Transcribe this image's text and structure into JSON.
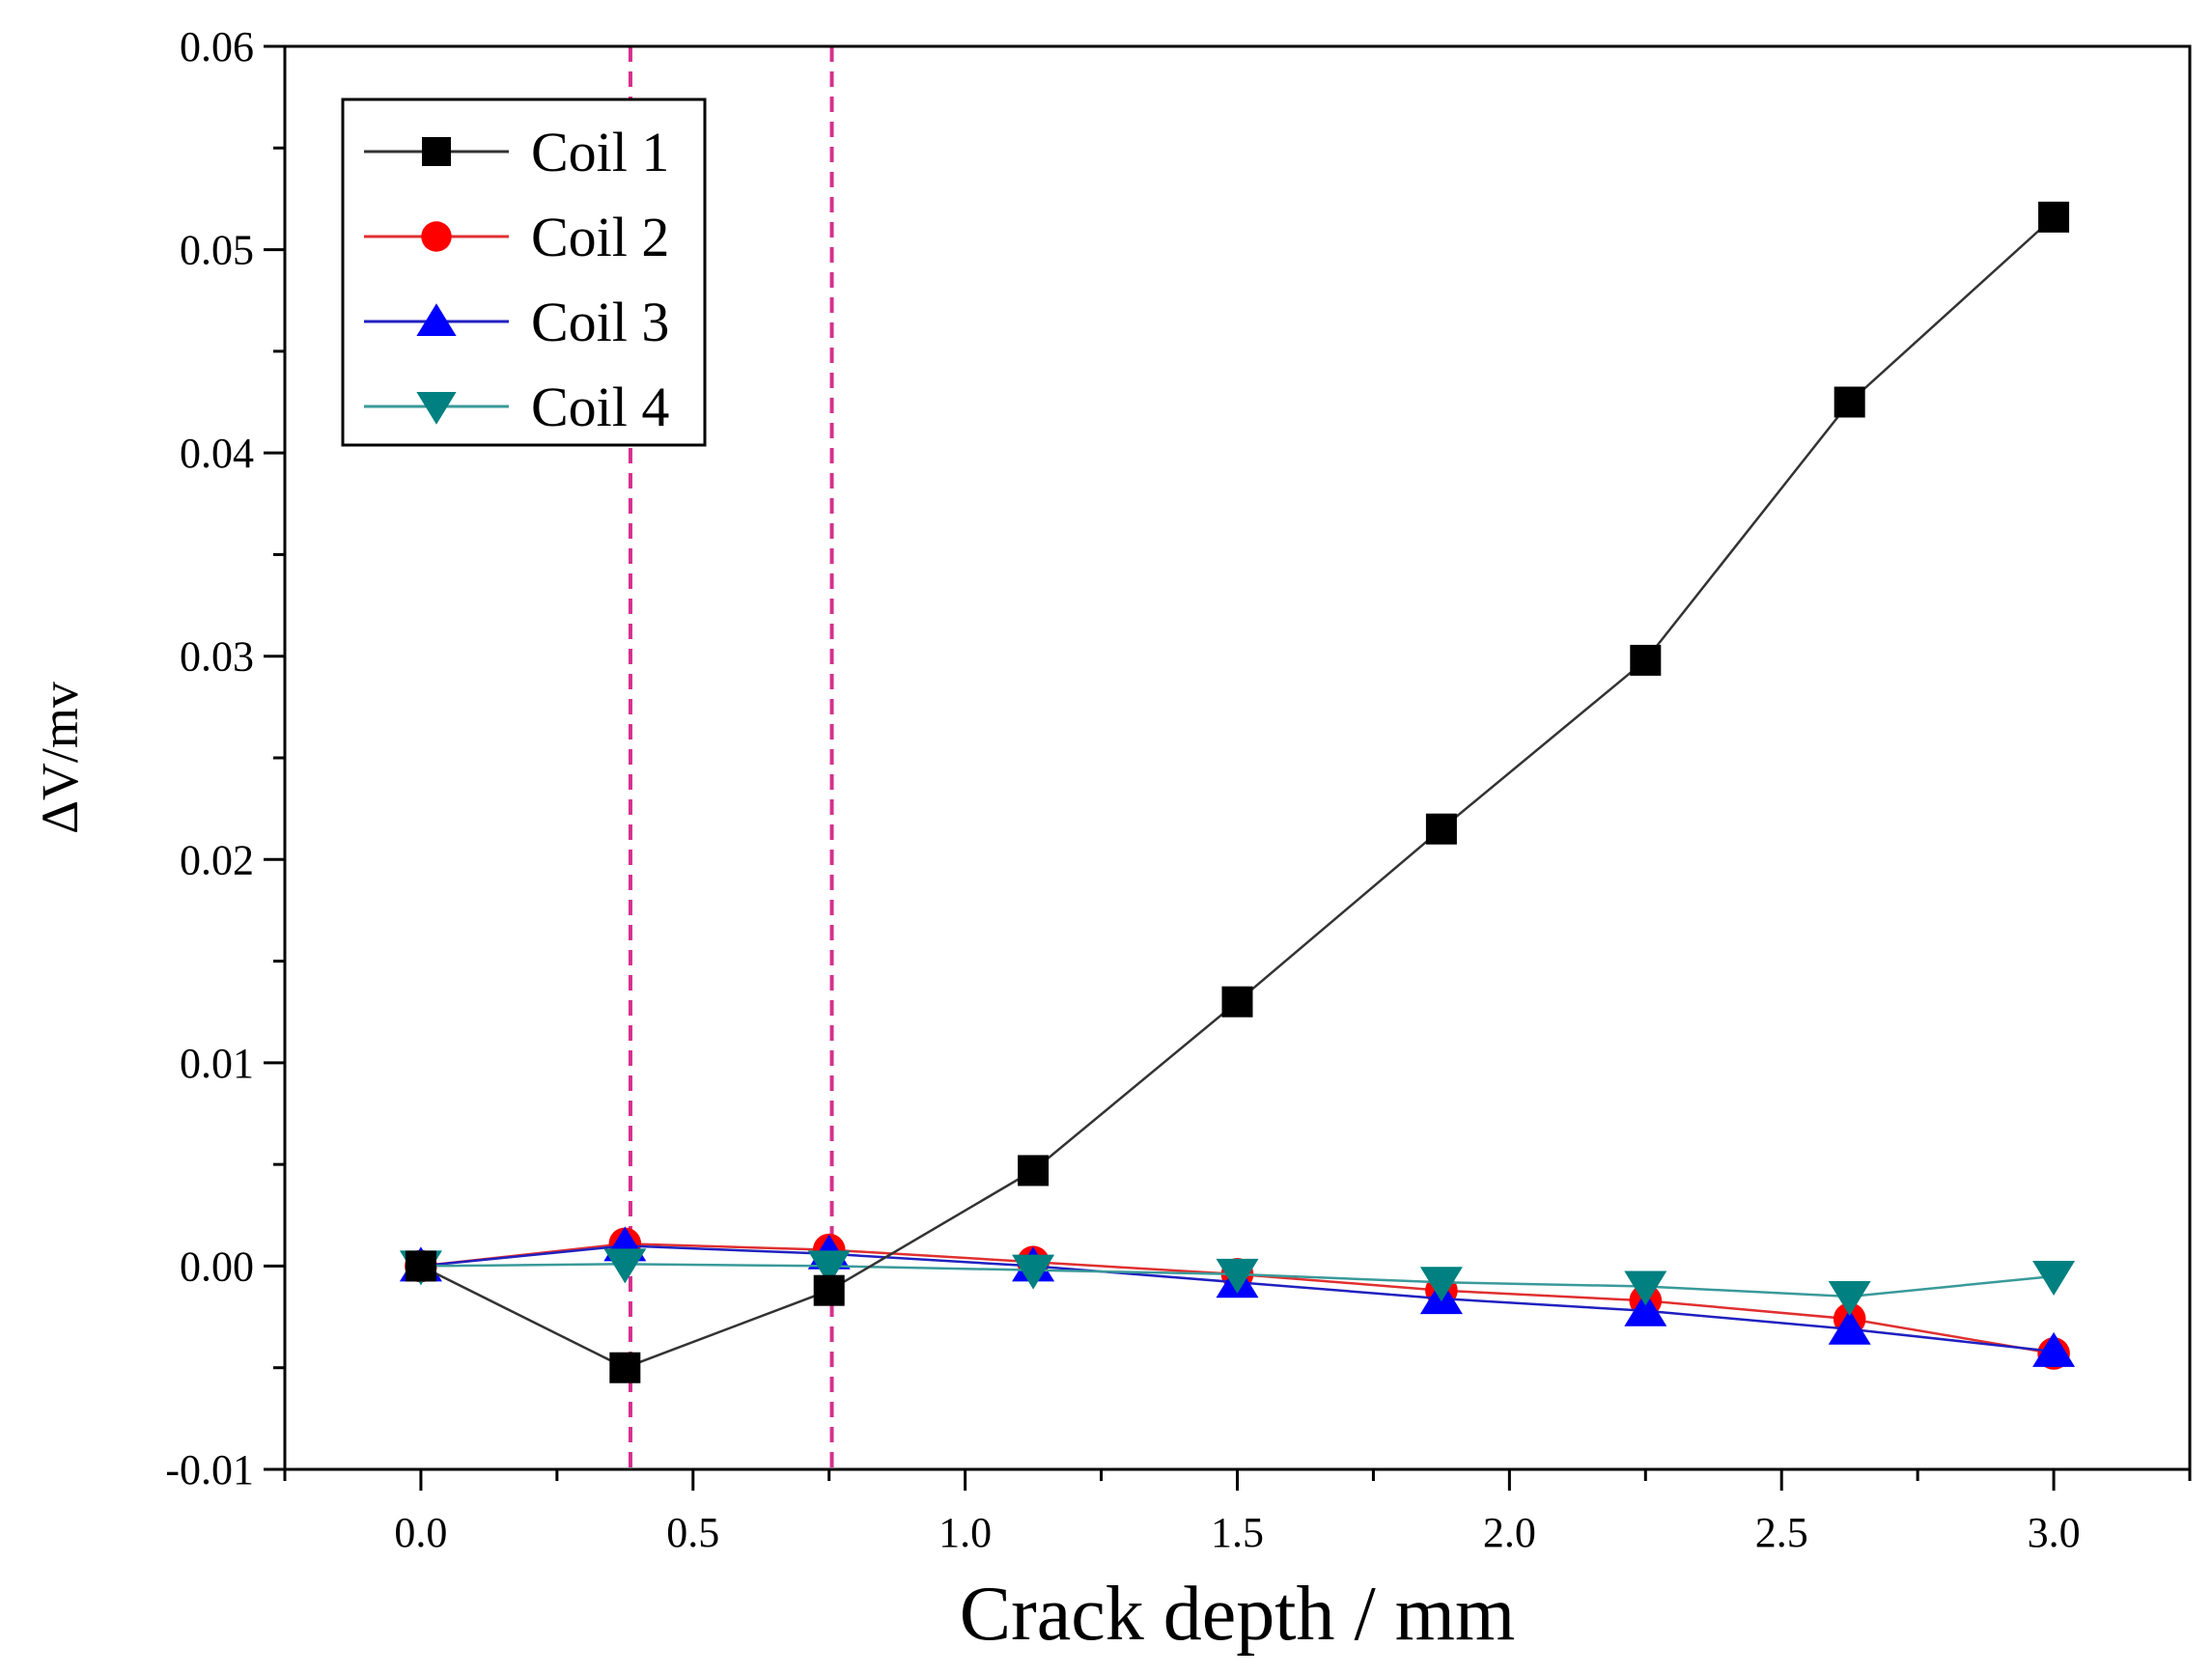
{
  "chart_data": {
    "type": "line",
    "title": "",
    "xlabel": "Crack depth / mm",
    "ylabel": "ΔV/mv",
    "xlim": [
      -0.25,
      3.25
    ],
    "ylim": [
      -0.01,
      0.06
    ],
    "x_ticks": [
      0.0,
      0.5,
      1.0,
      1.5,
      2.0,
      2.5,
      3.0
    ],
    "x_tick_labels": [
      "0.0",
      "0.5",
      "1.0",
      "1.5",
      "2.0",
      "2.5",
      "3.0"
    ],
    "y_ticks": [
      -0.01,
      0.0,
      0.01,
      0.02,
      0.03,
      0.04,
      0.05,
      0.06
    ],
    "y_tick_labels": [
      "-0.01",
      "0.00",
      "0.01",
      "0.02",
      "0.03",
      "0.04",
      "0.05",
      "0.06"
    ],
    "grid": false,
    "legend_position": "top-left",
    "reference_lines": [
      {
        "axis": "x",
        "value": 0.385,
        "style": "dashed",
        "color": "#d6308f"
      },
      {
        "axis": "x",
        "value": 0.755,
        "style": "dashed",
        "color": "#d6308f"
      }
    ],
    "x": [
      0.0,
      0.375,
      0.75,
      1.125,
      1.5,
      1.875,
      2.25,
      2.625,
      3.0
    ],
    "series": [
      {
        "name": "Coil 1",
        "marker": "square",
        "color": "#000000",
        "line_color": "#333333",
        "values": [
          0.0,
          -0.005,
          -0.0012,
          0.0047,
          0.013,
          0.0215,
          0.0298,
          0.0425,
          0.0516
        ]
      },
      {
        "name": "Coil 2",
        "marker": "circle",
        "color": "#ff0000",
        "line_color": "#e03030",
        "values": [
          0.0,
          0.0011,
          0.0008,
          0.0002,
          -0.0004,
          -0.0012,
          -0.0017,
          -0.0026,
          -0.0043
        ]
      },
      {
        "name": "Coil 3",
        "marker": "triangle-up",
        "color": "#0000ff",
        "line_color": "#2020c0",
        "values": [
          0.0,
          0.001,
          0.0006,
          0.0,
          -0.0008,
          -0.0016,
          -0.0022,
          -0.0031,
          -0.0042
        ]
      },
      {
        "name": "Coil 4",
        "marker": "triangle-down",
        "color": "#008080",
        "line_color": "#3a9a9a",
        "values": [
          0.0,
          0.0001,
          0.0,
          -0.0002,
          -0.0004,
          -0.0008,
          -0.001,
          -0.0015,
          -0.0005
        ]
      }
    ]
  }
}
